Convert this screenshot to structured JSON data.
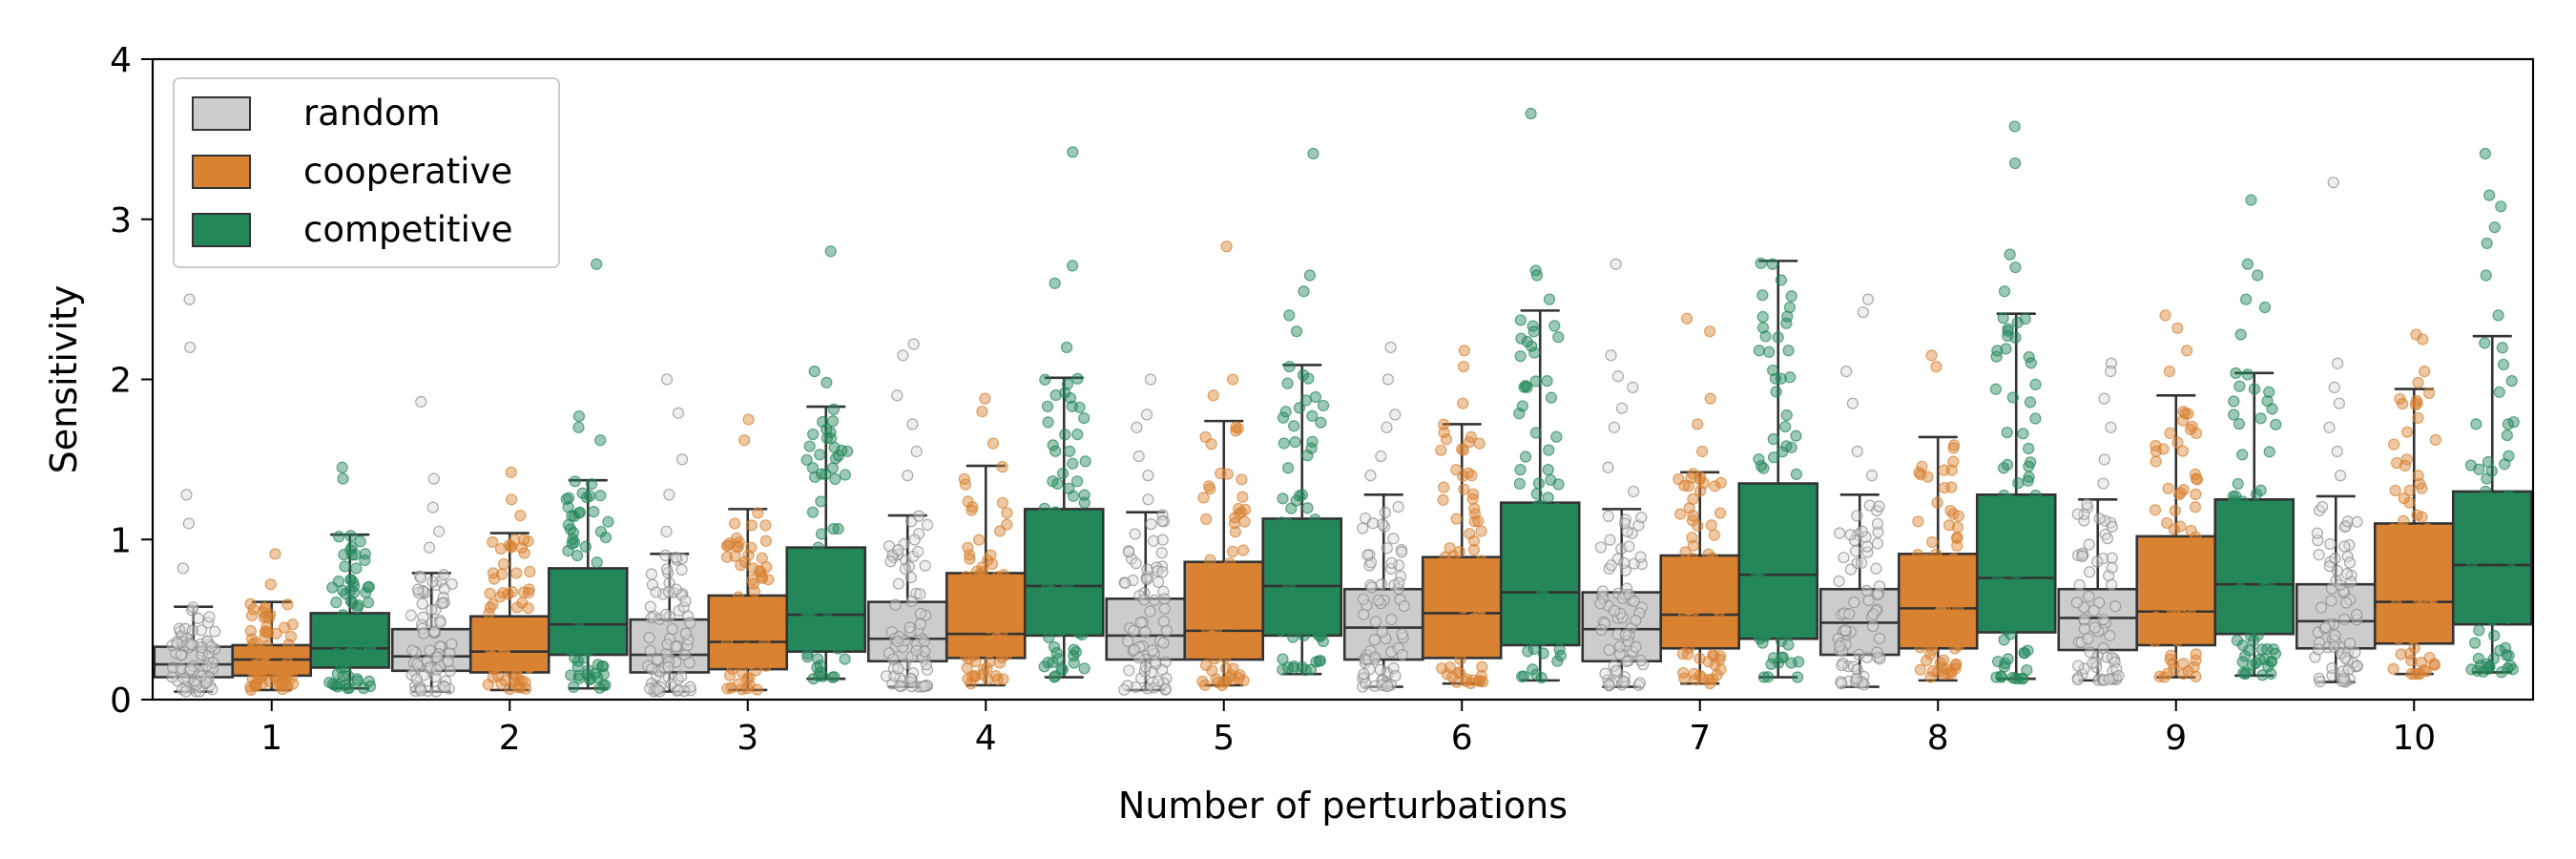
{
  "chart_data": {
    "type": "box",
    "xlabel": "Number of perturbations",
    "ylabel": "Sensitivity",
    "ylim": [
      0,
      4
    ],
    "yticks": [
      0,
      1,
      2,
      3,
      4
    ],
    "categories": [
      "1",
      "2",
      "3",
      "4",
      "5",
      "6",
      "7",
      "8",
      "9",
      "10"
    ],
    "legend": {
      "position": "top-left"
    },
    "series": [
      {
        "name": "random",
        "color": "#cccccc",
        "boxes": [
          {
            "whislo": 0.05,
            "q1": 0.14,
            "median": 0.22,
            "q3": 0.33,
            "whishi": 0.58
          },
          {
            "whislo": 0.05,
            "q1": 0.18,
            "median": 0.27,
            "q3": 0.44,
            "whishi": 0.79
          },
          {
            "whislo": 0.05,
            "q1": 0.17,
            "median": 0.28,
            "q3": 0.5,
            "whishi": 0.91
          },
          {
            "whislo": 0.08,
            "q1": 0.24,
            "median": 0.38,
            "q3": 0.61,
            "whishi": 1.15
          },
          {
            "whislo": 0.06,
            "q1": 0.25,
            "median": 0.4,
            "q3": 0.63,
            "whishi": 1.17
          },
          {
            "whislo": 0.08,
            "q1": 0.25,
            "median": 0.45,
            "q3": 0.69,
            "whishi": 1.28
          },
          {
            "whislo": 0.08,
            "q1": 0.24,
            "median": 0.44,
            "q3": 0.67,
            "whishi": 1.19
          },
          {
            "whislo": 0.08,
            "q1": 0.28,
            "median": 0.48,
            "q3": 0.69,
            "whishi": 1.28
          },
          {
            "whislo": 0.12,
            "q1": 0.31,
            "median": 0.51,
            "q3": 0.69,
            "whishi": 1.25
          },
          {
            "whislo": 0.11,
            "q1": 0.32,
            "median": 0.49,
            "q3": 0.72,
            "whishi": 1.27
          }
        ],
        "outliers": [
          [
            2.5,
            2.2,
            1.28,
            1.1,
            0.82
          ],
          [
            1.86,
            1.38,
            1.2,
            1.05,
            0.95
          ],
          [
            2.0,
            1.79,
            1.5,
            1.28,
            1.05
          ],
          [
            2.22,
            2.15,
            1.9,
            1.72,
            1.55,
            1.4
          ],
          [
            2.0,
            1.78,
            1.7,
            1.52,
            1.4,
            1.25
          ],
          [
            2.2,
            2.0,
            1.78,
            1.7,
            1.52,
            1.4
          ],
          [
            2.72,
            2.15,
            2.02,
            1.95,
            1.82,
            1.7,
            1.45,
            1.3
          ],
          [
            2.5,
            2.42,
            2.05,
            1.85,
            1.55,
            1.4
          ],
          [
            2.1,
            2.05,
            1.88,
            1.7,
            1.5,
            1.35
          ],
          [
            3.23,
            2.1,
            1.95,
            1.85,
            1.7,
            1.55,
            1.4
          ]
        ]
      },
      {
        "name": "cooperative",
        "color": "#d98232",
        "boxes": [
          {
            "whislo": 0.06,
            "q1": 0.15,
            "median": 0.25,
            "q3": 0.34,
            "whishi": 0.61
          },
          {
            "whislo": 0.06,
            "q1": 0.17,
            "median": 0.3,
            "q3": 0.52,
            "whishi": 1.04
          },
          {
            "whislo": 0.06,
            "q1": 0.19,
            "median": 0.36,
            "q3": 0.65,
            "whishi": 1.19
          },
          {
            "whislo": 0.09,
            "q1": 0.26,
            "median": 0.41,
            "q3": 0.79,
            "whishi": 1.46
          },
          {
            "whislo": 0.09,
            "q1": 0.25,
            "median": 0.43,
            "q3": 0.86,
            "whishi": 1.74
          },
          {
            "whislo": 0.1,
            "q1": 0.26,
            "median": 0.54,
            "q3": 0.89,
            "whishi": 1.72
          },
          {
            "whislo": 0.1,
            "q1": 0.32,
            "median": 0.53,
            "q3": 0.9,
            "whishi": 1.42
          },
          {
            "whislo": 0.12,
            "q1": 0.32,
            "median": 0.57,
            "q3": 0.91,
            "whishi": 1.64
          },
          {
            "whislo": 0.14,
            "q1": 0.34,
            "median": 0.55,
            "q3": 1.02,
            "whishi": 1.9
          },
          {
            "whislo": 0.16,
            "q1": 0.35,
            "median": 0.61,
            "q3": 1.1,
            "whishi": 1.94
          }
        ],
        "outliers": [
          [
            0.91,
            0.72
          ],
          [
            1.42,
            1.25,
            1.15
          ],
          [
            1.75,
            1.62
          ],
          [
            1.88,
            1.8,
            1.6
          ],
          [
            2.83,
            2.0,
            1.9
          ],
          [
            2.18,
            2.08,
            1.85
          ],
          [
            2.38,
            2.3,
            1.88,
            1.72,
            1.55
          ],
          [
            2.15,
            2.08
          ],
          [
            2.4,
            2.32,
            2.18,
            2.05
          ],
          [
            2.28,
            2.25,
            2.05,
            1.98
          ]
        ]
      },
      {
        "name": "competitive",
        "color": "#23875a",
        "boxes": [
          {
            "whislo": 0.07,
            "q1": 0.2,
            "median": 0.32,
            "q3": 0.54,
            "whishi": 1.03
          },
          {
            "whislo": 0.07,
            "q1": 0.28,
            "median": 0.47,
            "q3": 0.82,
            "whishi": 1.37
          },
          {
            "whislo": 0.13,
            "q1": 0.3,
            "median": 0.53,
            "q3": 0.95,
            "whishi": 1.83
          },
          {
            "whislo": 0.14,
            "q1": 0.4,
            "median": 0.71,
            "q3": 1.19,
            "whishi": 2.01
          },
          {
            "whislo": 0.16,
            "q1": 0.4,
            "median": 0.71,
            "q3": 1.13,
            "whishi": 2.09
          },
          {
            "whislo": 0.12,
            "q1": 0.34,
            "median": 0.67,
            "q3": 1.23,
            "whishi": 2.43
          },
          {
            "whislo": 0.14,
            "q1": 0.38,
            "median": 0.78,
            "q3": 1.35,
            "whishi": 2.74
          },
          {
            "whislo": 0.13,
            "q1": 0.42,
            "median": 0.76,
            "q3": 1.28,
            "whishi": 2.41
          },
          {
            "whislo": 0.15,
            "q1": 0.41,
            "median": 0.72,
            "q3": 1.25,
            "whishi": 2.04
          },
          {
            "whislo": 0.17,
            "q1": 0.47,
            "median": 0.84,
            "q3": 1.3,
            "whishi": 2.27
          }
        ],
        "outliers": [
          [
            1.45,
            1.38
          ],
          [
            2.72,
            1.77,
            1.7,
            1.62
          ],
          [
            2.8,
            2.05,
            1.98
          ],
          [
            3.42,
            2.71,
            2.6,
            2.2
          ],
          [
            3.41,
            2.65,
            2.55,
            2.4,
            2.3
          ],
          [
            3.66,
            2.68,
            2.65,
            2.5
          ],
          [
            2.72,
            2.62,
            2.52,
            2.45,
            2.35
          ],
          [
            3.58,
            3.35,
            2.78,
            2.7,
            2.55
          ],
          [
            3.12,
            2.72,
            2.65,
            2.5,
            2.45,
            2.28
          ],
          [
            3.41,
            3.15,
            3.08,
            2.95,
            2.85,
            2.65,
            2.4
          ]
        ]
      }
    ]
  }
}
